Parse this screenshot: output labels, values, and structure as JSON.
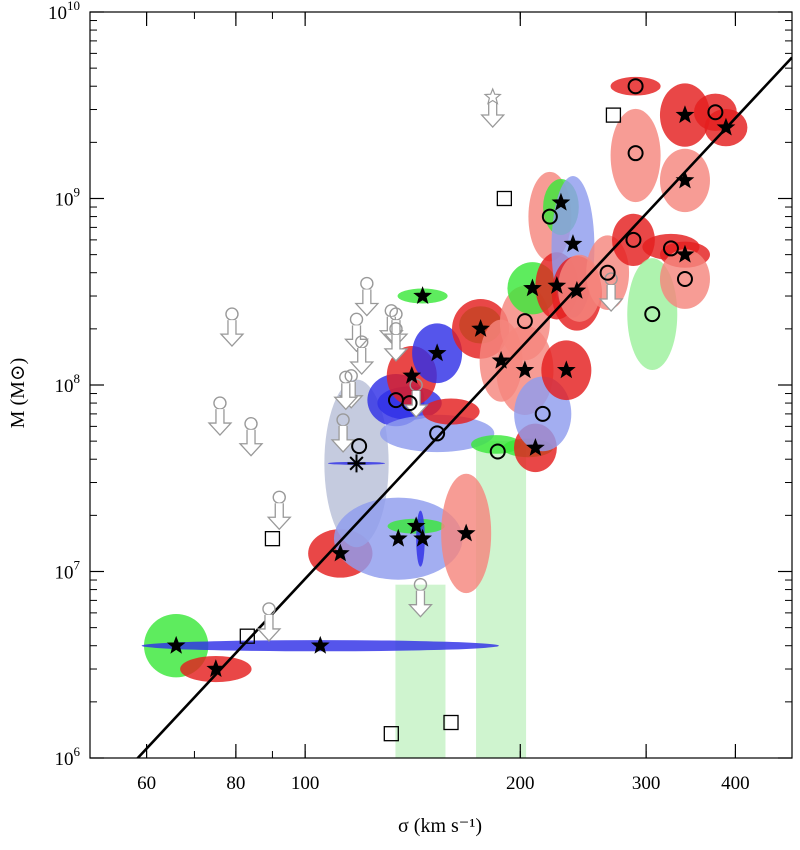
{
  "chart_data": {
    "type": "scatter",
    "xscale": "log",
    "yscale": "log",
    "xlim": [
      50,
      480
    ],
    "ylim": [
      1000000,
      10000000000
    ],
    "xlabel": "σ (km s⁻¹)",
    "ylabel": "M (M⊙)",
    "xticks": [
      {
        "value": 60,
        "label": "60"
      },
      {
        "value": 80,
        "label": "80"
      },
      {
        "value": 100,
        "label": "100"
      },
      {
        "value": 200,
        "label": "200"
      },
      {
        "value": 300,
        "label": "300"
      },
      {
        "value": 400,
        "label": "400"
      }
    ],
    "yticks": [
      {
        "exp": 6,
        "base": "10",
        "sup": "6"
      },
      {
        "exp": 7,
        "base": "10",
        "sup": "7"
      },
      {
        "exp": 8,
        "base": "10",
        "sup": "8"
      },
      {
        "exp": 9,
        "base": "10",
        "sup": "9"
      },
      {
        "exp": 10,
        "base": "10",
        "sup": "10"
      }
    ],
    "fit_line": {
      "x": [
        57,
        480
      ],
      "y": [
        910000,
        5700000000
      ]
    },
    "colors": {
      "red": "#e41e1e",
      "light_red": "#f5867e",
      "blue": "#3030e6",
      "light_blue": "#8f9cee",
      "pale_blue": "#b8bfd8",
      "green": "#3be83b",
      "light_green": "#9cf09c",
      "pale_green": "#c7f2c7",
      "open_marker": "#999999",
      "line": "#000000"
    },
    "ellipses": [
      {
        "x": 66,
        "y": 4000000,
        "rx": 0.045,
        "ry": 0.17,
        "color": "green"
      },
      {
        "x": 75,
        "y": 3000000,
        "rx": 0.05,
        "ry": 0.07,
        "color": "red"
      },
      {
        "x": 105,
        "y": 4000000,
        "rx": 0.25,
        "ry": 0.03,
        "color": "blue"
      },
      {
        "x": 112,
        "y": 12500000,
        "rx": 0.045,
        "ry": 0.13,
        "color": "red"
      },
      {
        "x": 118,
        "y": 38000000,
        "rx": 0.045,
        "ry": 0.45,
        "color": "pale_blue"
      },
      {
        "x": 118,
        "y": 38000000,
        "rx": 0.04,
        "ry": 0.008,
        "color": "blue"
      },
      {
        "x": 135,
        "y": 15000000,
        "rx": 0.09,
        "ry": 0.22,
        "color": "light_blue"
      },
      {
        "x": 143,
        "y": 17500000,
        "rx": 0.04,
        "ry": 0.04,
        "color": "green"
      },
      {
        "x": 145,
        "y": 15000000,
        "rx": 0.006,
        "ry": 0.15,
        "color": "blue"
      },
      {
        "x": 134,
        "y": 83000000,
        "rx": 0.04,
        "ry": 0.14,
        "color": "blue"
      },
      {
        "x": 140,
        "y": 80000000,
        "rx": 0.045,
        "ry": 0.09,
        "color": "blue"
      },
      {
        "x": 141,
        "y": 112000000,
        "rx": 0.035,
        "ry": 0.16,
        "color": "red"
      },
      {
        "x": 146,
        "y": 300000000,
        "rx": 0.035,
        "ry": 0.04,
        "color": "green"
      },
      {
        "x": 153,
        "y": 148000000,
        "rx": 0.035,
        "ry": 0.16,
        "color": "blue"
      },
      {
        "x": 153,
        "y": 55000000,
        "rx": 0.08,
        "ry": 0.1,
        "color": "light_blue"
      },
      {
        "x": 160,
        "y": 72000000,
        "rx": 0.04,
        "ry": 0.07,
        "color": "red"
      },
      {
        "x": 168,
        "y": 16000000,
        "rx": 0.035,
        "ry": 0.32,
        "color": "light_red"
      },
      {
        "x": 176,
        "y": 210000000,
        "rx": 0.03,
        "ry": 0.1,
        "color": "green"
      },
      {
        "x": 176,
        "y": 200000000,
        "rx": 0.04,
        "ry": 0.16,
        "color": "red"
      },
      {
        "x": 185,
        "y": 48000000,
        "rx": 0.035,
        "ry": 0.05,
        "color": "green"
      },
      {
        "x": 188,
        "y": 135000000,
        "rx": 0.03,
        "ry": 0.22,
        "color": "light_red"
      },
      {
        "x": 203,
        "y": 215000000,
        "rx": 0.035,
        "ry": 0.2,
        "color": "light_red"
      },
      {
        "x": 203,
        "y": 120000000,
        "rx": 0.04,
        "ry": 0.24,
        "color": "light_red"
      },
      {
        "x": 208,
        "y": 330000000,
        "rx": 0.035,
        "ry": 0.14,
        "color": "green"
      },
      {
        "x": 205,
        "y": 46000000,
        "rx": 0.035,
        "ry": 0.05,
        "color": "green"
      },
      {
        "x": 210,
        "y": 46000000,
        "rx": 0.03,
        "ry": 0.13,
        "color": "red"
      },
      {
        "x": 215,
        "y": 70000000,
        "rx": 0.04,
        "ry": 0.2,
        "color": "light_blue"
      },
      {
        "x": 220,
        "y": 800000000,
        "rx": 0.03,
        "ry": 0.24,
        "color": "light_red"
      },
      {
        "x": 225,
        "y": 340000000,
        "rx": 0.03,
        "ry": 0.18,
        "color": "red"
      },
      {
        "x": 228,
        "y": 900000000,
        "rx": 0.025,
        "ry": 0.15,
        "color": "green"
      },
      {
        "x": 237,
        "y": 550000000,
        "rx": 0.03,
        "ry": 0.38,
        "color": "light_blue"
      },
      {
        "x": 232,
        "y": 120000000,
        "rx": 0.035,
        "ry": 0.16,
        "color": "red"
      },
      {
        "x": 240,
        "y": 310000000,
        "rx": 0.035,
        "ry": 0.2,
        "color": "red"
      },
      {
        "x": 242,
        "y": 330000000,
        "rx": 0.03,
        "ry": 0.18,
        "color": "light_red"
      },
      {
        "x": 265,
        "y": 400000000,
        "rx": 0.03,
        "ry": 0.2,
        "color": "light_red"
      },
      {
        "x": 290,
        "y": 4000000000,
        "rx": 0.035,
        "ry": 0.05,
        "color": "red"
      },
      {
        "x": 290,
        "y": 1700000000,
        "rx": 0.035,
        "ry": 0.25,
        "color": "light_red"
      },
      {
        "x": 288,
        "y": 600000000,
        "rx": 0.03,
        "ry": 0.14,
        "color": "red"
      },
      {
        "x": 306,
        "y": 240000000,
        "rx": 0.035,
        "ry": 0.3,
        "color": "light_green"
      },
      {
        "x": 325,
        "y": 550000000,
        "rx": 0.04,
        "ry": 0.07,
        "color": "red"
      },
      {
        "x": 340,
        "y": 2800000000,
        "rx": 0.035,
        "ry": 0.17,
        "color": "red"
      },
      {
        "x": 340,
        "y": 1250000000,
        "rx": 0.035,
        "ry": 0.17,
        "color": "light_red"
      },
      {
        "x": 340,
        "y": 500000000,
        "rx": 0.035,
        "ry": 0.07,
        "color": "red"
      },
      {
        "x": 340,
        "y": 370000000,
        "rx": 0.035,
        "ry": 0.16,
        "color": "light_red"
      },
      {
        "x": 375,
        "y": 2900000000,
        "rx": 0.03,
        "ry": 0.1,
        "color": "red"
      },
      {
        "x": 388,
        "y": 2400000000,
        "rx": 0.03,
        "ry": 0.1,
        "color": "red"
      }
    ],
    "bands": [
      {
        "x": 145,
        "dx": 0.035,
        "y_low": 1000000,
        "y_high": 8500000,
        "color": "pale_green"
      },
      {
        "x": 188,
        "dx": 0.035,
        "y_low": 1000000,
        "y_high": 50000000,
        "color": "pale_green"
      }
    ],
    "star_points": [
      [
        66,
        4000000
      ],
      [
        75,
        3000000
      ],
      [
        105,
        4000000
      ],
      [
        112,
        12500000
      ],
      [
        135,
        15000000
      ],
      [
        143,
        17500000
      ],
      [
        146,
        15000000
      ],
      [
        141,
        112000000
      ],
      [
        146,
        300000000
      ],
      [
        153,
        148000000
      ],
      [
        168,
        16000000
      ],
      [
        176,
        200000000
      ],
      [
        188,
        135000000
      ],
      [
        203,
        120000000
      ],
      [
        208,
        330000000
      ],
      [
        210,
        46000000
      ],
      [
        225,
        340000000
      ],
      [
        228,
        950000000
      ],
      [
        232,
        120000000
      ],
      [
        237,
        570000000
      ],
      [
        240,
        320000000
      ],
      [
        340,
        2800000000
      ],
      [
        340,
        1250000000
      ],
      [
        340,
        500000000
      ],
      [
        388,
        2400000000
      ]
    ],
    "open_star_points": [
      [
        183,
        3500000000
      ]
    ],
    "asterisk_points": [
      [
        118,
        38000000
      ]
    ],
    "circle_points": [
      [
        119,
        47000000
      ],
      [
        134,
        83000000
      ],
      [
        140,
        80000000
      ],
      [
        153,
        55000000
      ],
      [
        186,
        44000000
      ],
      [
        203,
        220000000
      ],
      [
        215,
        70000000
      ],
      [
        220,
        800000000
      ],
      [
        265,
        400000000
      ],
      [
        290,
        4000000000
      ],
      [
        290,
        1750000000
      ],
      [
        288,
        600000000
      ],
      [
        306,
        240000000
      ],
      [
        325,
        540000000
      ],
      [
        340,
        370000000
      ],
      [
        375,
        2900000000
      ]
    ],
    "square_points": [
      [
        90,
        15000000
      ],
      [
        83,
        4500000
      ],
      [
        132,
        1350000
      ],
      [
        160,
        1550000
      ],
      [
        190,
        1000000000
      ],
      [
        270,
        2800000000
      ]
    ],
    "upper_limits": [
      [
        79,
        240000000
      ],
      [
        76,
        80000000
      ],
      [
        84,
        62000000
      ],
      [
        92,
        25000000
      ],
      [
        89,
        6300000
      ],
      [
        118,
        225000000
      ],
      [
        120,
        170000000
      ],
      [
        122,
        350000000
      ],
      [
        116,
        112000000
      ],
      [
        114,
        110000000
      ],
      [
        113,
        65000000
      ],
      [
        132,
        250000000
      ],
      [
        134,
        240000000
      ],
      [
        134,
        200000000
      ],
      [
        145,
        8500000
      ],
      [
        143,
        100000000
      ],
      [
        268,
        370000000
      ]
    ]
  }
}
